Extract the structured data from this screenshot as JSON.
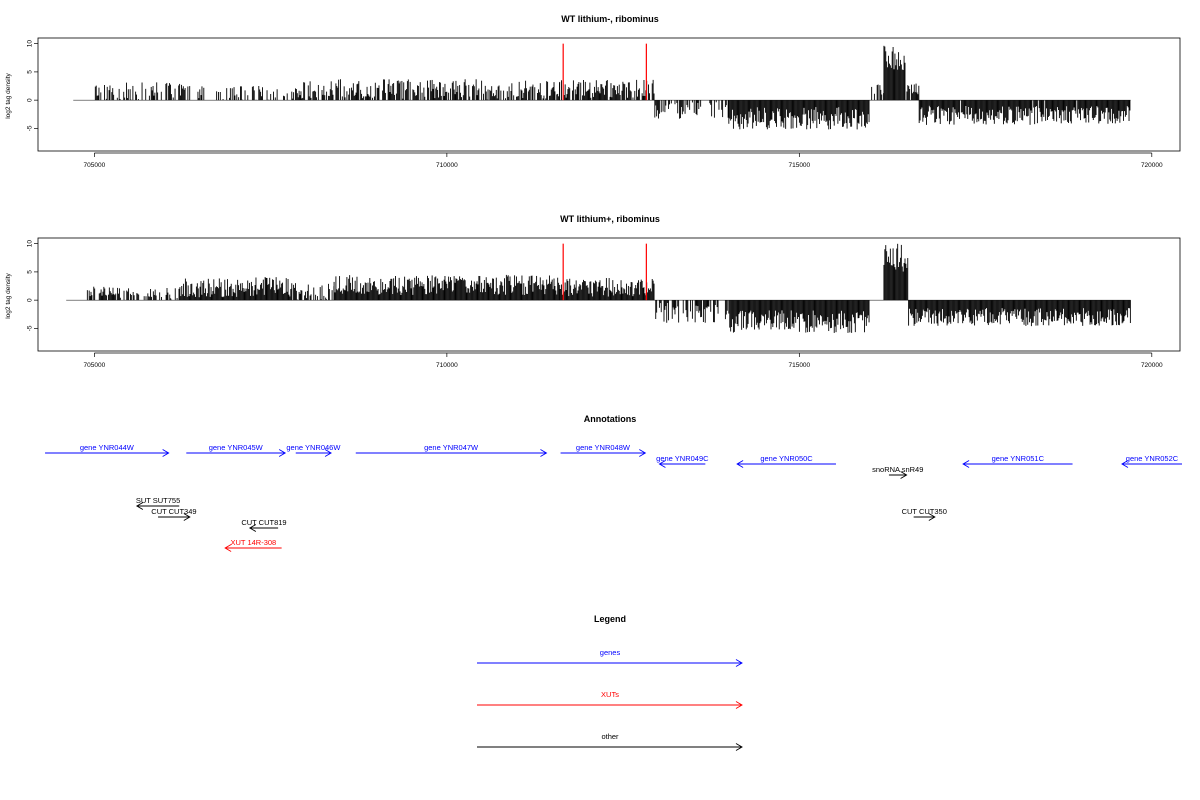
{
  "colors": {
    "gene": "#0000ff",
    "xut": "#ff0000",
    "other": "#000000",
    "marker": "#ff0000"
  },
  "chart_data": [
    {
      "type": "bar",
      "title": "WT lithium-, ribominus",
      "ylabel": "log2 tag density",
      "xlim": [
        704200,
        720400
      ],
      "ylim": [
        -9,
        11
      ],
      "xticks": [
        705000,
        710000,
        715000,
        720000
      ],
      "yticks": [
        -5,
        0,
        5,
        10
      ],
      "markers": [
        711650,
        712830
      ],
      "segments": [
        {
          "from": 705000,
          "to": 706500,
          "mean": 1.6,
          "spread": 1.6,
          "density": 0.5
        },
        {
          "from": 706500,
          "to": 707800,
          "mean": 1.2,
          "spread": 1.4,
          "density": 0.35
        },
        {
          "from": 707800,
          "to": 708400,
          "mean": 1.8,
          "spread": 1.6,
          "density": 0.85
        },
        {
          "from": 708400,
          "to": 711600,
          "mean": 1.9,
          "spread": 1.8,
          "density": 0.75
        },
        {
          "from": 711600,
          "to": 712950,
          "mean": 2.0,
          "spread": 1.6,
          "density": 0.75
        },
        {
          "from": 712950,
          "to": 714000,
          "mean": -1.8,
          "spread": 1.6,
          "density": 0.35
        },
        {
          "from": 714000,
          "to": 716000,
          "mean": -3.2,
          "spread": 2.0,
          "density": 1.0
        },
        {
          "from": 716000,
          "to": 716200,
          "mean": 1.8,
          "spread": 1.2,
          "density": 0.6
        },
        {
          "from": 716200,
          "to": 716500,
          "mean": 7.5,
          "spread": 2.5,
          "density": 1.0
        },
        {
          "from": 716500,
          "to": 716700,
          "mean": 2.0,
          "spread": 1.0,
          "density": 0.8
        },
        {
          "from": 716700,
          "to": 719700,
          "mean": -2.7,
          "spread": 1.7,
          "density": 0.95
        }
      ]
    },
    {
      "type": "bar",
      "title": "WT lithium+, ribominus",
      "ylabel": "log2 tag density",
      "xlim": [
        704200,
        720400
      ],
      "ylim": [
        -9,
        11
      ],
      "xticks": [
        705000,
        710000,
        715000,
        720000
      ],
      "yticks": [
        -5,
        0,
        5,
        10
      ],
      "markers": [
        711650,
        712830
      ],
      "segments": [
        {
          "from": 704900,
          "to": 705900,
          "mean": 1.4,
          "spread": 1.0,
          "density": 0.6
        },
        {
          "from": 705900,
          "to": 706200,
          "mean": 1.0,
          "spread": 1.2,
          "density": 0.3
        },
        {
          "from": 706200,
          "to": 707800,
          "mean": 2.3,
          "spread": 1.8,
          "density": 1.0
        },
        {
          "from": 707800,
          "to": 708400,
          "mean": 1.6,
          "spread": 1.5,
          "density": 0.6
        },
        {
          "from": 708400,
          "to": 711600,
          "mean": 2.7,
          "spread": 1.8,
          "density": 1.0
        },
        {
          "from": 711600,
          "to": 712950,
          "mean": 2.3,
          "spread": 1.7,
          "density": 1.0
        },
        {
          "from": 712950,
          "to": 714000,
          "mean": -2.2,
          "spread": 1.8,
          "density": 0.6
        },
        {
          "from": 714000,
          "to": 716000,
          "mean": -3.8,
          "spread": 2.0,
          "density": 1.0
        },
        {
          "from": 716200,
          "to": 716550,
          "mean": 7.5,
          "spread": 2.5,
          "density": 1.0
        },
        {
          "from": 716550,
          "to": 719700,
          "mean": -3.0,
          "spread": 1.6,
          "density": 1.0
        }
      ]
    }
  ],
  "annotations": {
    "title": "Annotations",
    "xlim": [
      704200,
      720400
    ],
    "features": [
      {
        "label": "gene YNR044W",
        "kind": "gene",
        "start": 704300,
        "end": 706050,
        "strand": "+",
        "row": 0
      },
      {
        "label": "gene YNR045W",
        "kind": "gene",
        "start": 706300,
        "end": 707700,
        "strand": "+",
        "row": 0
      },
      {
        "label": "gene YNR046W",
        "kind": "gene",
        "start": 707850,
        "end": 708350,
        "strand": "+",
        "row": 0
      },
      {
        "label": "gene YNR047W",
        "kind": "gene",
        "start": 708700,
        "end": 711400,
        "strand": "+",
        "row": 0
      },
      {
        "label": "gene YNR048W",
        "kind": "gene",
        "start": 711600,
        "end": 712800,
        "strand": "+",
        "row": 0
      },
      {
        "label": "gene YNR049C",
        "kind": "gene",
        "start": 713000,
        "end": 713650,
        "strand": "-",
        "row": 1
      },
      {
        "label": "gene YNR050C",
        "kind": "gene",
        "start": 714100,
        "end": 715500,
        "strand": "-",
        "row": 1
      },
      {
        "label": "snoRNA snR49",
        "kind": "other",
        "start": 716250,
        "end": 716500,
        "strand": "+",
        "row": 2
      },
      {
        "label": "gene YNR051C",
        "kind": "gene",
        "start": 717300,
        "end": 718850,
        "strand": "-",
        "row": 1
      },
      {
        "label": "gene YNR052C",
        "kind": "gene",
        "start": 719550,
        "end": 720400,
        "strand": "-",
        "row": 1
      },
      {
        "label": "SUT SUT755",
        "kind": "other",
        "start": 705600,
        "end": 706200,
        "strand": "-",
        "row": 3
      },
      {
        "label": "CUT CUT349",
        "kind": "other",
        "start": 705900,
        "end": 706350,
        "strand": "+",
        "row": 4
      },
      {
        "label": "CUT CUT819",
        "kind": "other",
        "start": 707200,
        "end": 707600,
        "strand": "-",
        "row": 5
      },
      {
        "label": "XUT 14R-308",
        "kind": "xut",
        "start": 706850,
        "end": 707650,
        "strand": "-",
        "row": 6
      },
      {
        "label": "CUT CUT350",
        "kind": "other",
        "start": 716600,
        "end": 716900,
        "strand": "+",
        "row": 4
      }
    ]
  },
  "legend": {
    "title": "Legend",
    "items": [
      {
        "label": "genes",
        "kind": "gene"
      },
      {
        "label": "XUTs",
        "kind": "xut"
      },
      {
        "label": "other",
        "kind": "other"
      }
    ]
  }
}
